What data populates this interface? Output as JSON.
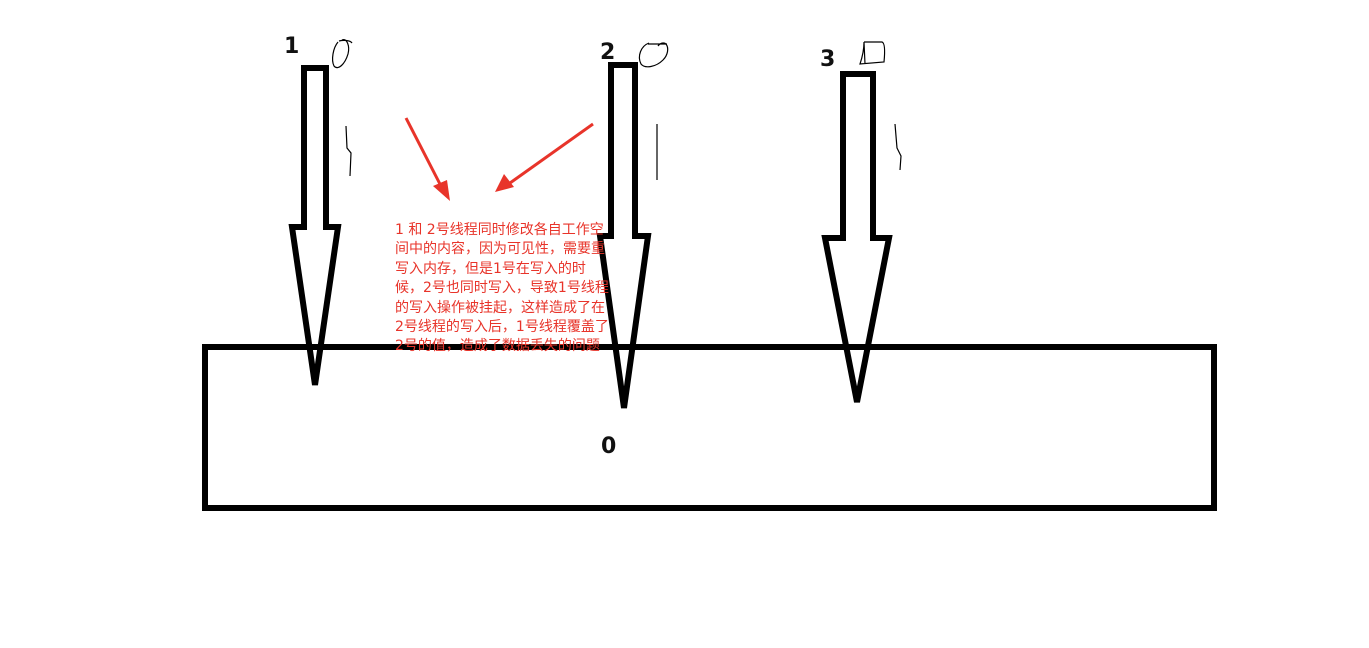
{
  "threads": [
    {
      "label": "1",
      "value_scribble": "0"
    },
    {
      "label": "2",
      "value_scribble": "0"
    },
    {
      "label": "3",
      "value_scribble": "0"
    }
  ],
  "main_memory": {
    "value": "0"
  },
  "annotation": {
    "text": "1 和 2号线程同时修改各自工作空间中的内容，因为可见性，需要重写入内存，但是1号在写入的时候，2号也同时写入，导致1号线程的写入操作被挂起，这样造成了在2号线程的写入后，1号线程覆盖了2号的值，造成了数据丢失的问题",
    "color": "#e8342a"
  },
  "colors": {
    "stroke": "#000000",
    "pointer": "#e8342a",
    "background": "#ffffff"
  }
}
